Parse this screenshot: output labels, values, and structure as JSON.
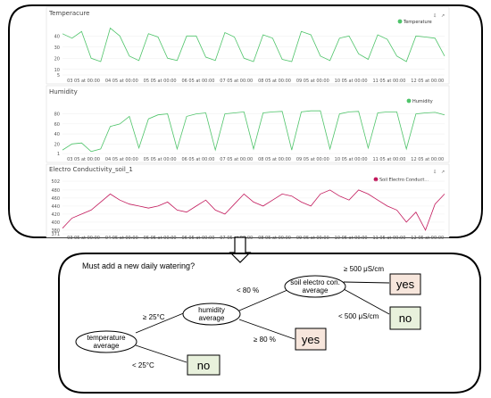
{
  "colors": {
    "temperature": "#4fc46a",
    "humidity": "#4fc46a",
    "conductivity": "#c2185b",
    "leaf_yes": "#f7e6dc",
    "leaf_no": "#e8f1dc"
  },
  "dates": [
    "03 05 at 00:00",
    "04 05 at 00:00",
    "05 05 at 00:00",
    "06 05 at 00:00",
    "07 05 at 00:00",
    "08 05 at 00:00",
    "09 05 at 00:00",
    "10 05 at 00:00",
    "11 05 at 00:00",
    "12 05 at 00:00"
  ],
  "chart_data": [
    {
      "type": "line",
      "title": "Temperacure",
      "legend": "Temperature",
      "ylim": [
        5,
        45
      ],
      "yticks": [
        "40",
        "30",
        "20",
        "10",
        "5"
      ],
      "x": [
        0,
        0.25,
        0.5,
        0.75,
        1,
        1.25,
        1.5,
        1.75,
        2,
        2.25,
        2.5,
        2.75,
        3,
        3.25,
        3.5,
        3.75,
        4,
        4.25,
        4.5,
        4.75,
        5,
        5.25,
        5.5,
        5.75,
        6,
        6.25,
        6.5,
        6.75,
        7,
        7.25,
        7.5,
        7.75,
        8,
        8.25,
        8.5,
        8.75,
        9,
        9.25,
        9.5,
        9.75,
        10
      ],
      "values": [
        42,
        38,
        44,
        20,
        17,
        47,
        40,
        22,
        18,
        42,
        39,
        20,
        18,
        40,
        40,
        21,
        18,
        43,
        39,
        20,
        17,
        41,
        38,
        19,
        17,
        44,
        41,
        22,
        18,
        38,
        40,
        24,
        19,
        41,
        37,
        22,
        17,
        40,
        39,
        38,
        22
      ]
    },
    {
      "type": "line",
      "title": "Humidity",
      "legend": "Humidity",
      "ylim": [
        1,
        90
      ],
      "yticks": [
        "80",
        "60",
        "40",
        "20",
        "1"
      ],
      "x": [
        0,
        0.25,
        0.5,
        0.75,
        1,
        1.25,
        1.5,
        1.75,
        2,
        2.25,
        2.5,
        2.75,
        3,
        3.25,
        3.5,
        3.75,
        4,
        4.25,
        4.5,
        4.75,
        5,
        5.25,
        5.5,
        5.75,
        6,
        6.25,
        6.5,
        6.75,
        7,
        7.25,
        7.5,
        7.75,
        8,
        8.25,
        8.5,
        8.75,
        9,
        9.25,
        9.5,
        9.75,
        10
      ],
      "values": [
        8,
        20,
        22,
        5,
        10,
        55,
        60,
        75,
        12,
        70,
        78,
        80,
        10,
        75,
        80,
        82,
        8,
        80,
        82,
        84,
        10,
        82,
        84,
        85,
        8,
        84,
        86,
        86,
        10,
        80,
        84,
        85,
        12,
        82,
        84,
        84,
        10,
        80,
        82,
        83,
        78
      ]
    },
    {
      "type": "line",
      "title": "Electro Conductivity_soil_1",
      "legend": "Soil Electro Conduct...",
      "ylim": [
        371,
        502
      ],
      "yticks": [
        "502",
        "480",
        "460",
        "440",
        "420",
        "400",
        "380",
        "371"
      ],
      "x": [
        0,
        0.25,
        0.5,
        0.75,
        1,
        1.25,
        1.5,
        1.75,
        2,
        2.25,
        2.5,
        2.75,
        3,
        3.25,
        3.5,
        3.75,
        4,
        4.25,
        4.5,
        4.75,
        5,
        5.25,
        5.5,
        5.75,
        6,
        6.25,
        6.5,
        6.75,
        7,
        7.25,
        7.5,
        7.75,
        8,
        8.25,
        8.5,
        8.75,
        9,
        9.25,
        9.5,
        9.75,
        10
      ],
      "values": [
        385,
        410,
        420,
        430,
        450,
        470,
        455,
        445,
        440,
        435,
        440,
        450,
        430,
        425,
        440,
        455,
        430,
        420,
        445,
        470,
        450,
        440,
        455,
        470,
        465,
        450,
        440,
        470,
        480,
        465,
        455,
        480,
        470,
        455,
        440,
        430,
        400,
        425,
        380,
        445,
        470
      ]
    }
  ],
  "tree": {
    "question": "Must add a new daily watering?",
    "nodes": {
      "temperature": [
        "temperature",
        "average"
      ],
      "humidity": [
        "humidity",
        "average"
      ],
      "soil": [
        "soil electro con.",
        "average"
      ]
    },
    "edges": {
      "temp_high": "≥ 25°C",
      "temp_low": "< 25°C",
      "hum_low": "< 80 %",
      "hum_high": "≥ 80 %",
      "soil_high": "≥ 500 μS/cm",
      "soil_low": "< 500 μS/cm"
    },
    "leaves": {
      "soil_yes": "yes",
      "soil_no": "no",
      "hum_yes": "yes",
      "temp_no": "no"
    }
  }
}
